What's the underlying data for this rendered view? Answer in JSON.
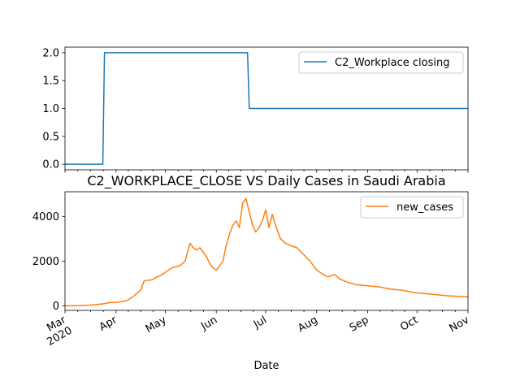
{
  "chart_data": [
    {
      "type": "line",
      "title": "",
      "xlabel": "",
      "ylabel": "",
      "ylim": [
        -0.1,
        2.1
      ],
      "yticks": [
        0.0,
        0.5,
        1.0,
        1.5,
        2.0
      ],
      "ytick_labels": [
        "0.0",
        "0.5",
        "1.0",
        "1.5",
        "2.0"
      ],
      "grid": false,
      "legend_position": "upper right",
      "series": [
        {
          "name": "C2_Workplace closing",
          "color": "#1f77b4",
          "x": [
            "2020-03-01",
            "2020-03-24",
            "2020-03-25",
            "2020-06-20",
            "2020-06-21",
            "2020-11-01"
          ],
          "y": [
            0,
            0,
            2,
            2,
            1,
            1
          ]
        }
      ]
    },
    {
      "type": "line",
      "title": "C2_WORKPLACE_CLOSE VS Daily Cases in Saudi Arabia",
      "xlabel": "Date",
      "ylabel": "",
      "ylim": [
        -200,
        5100
      ],
      "yticks": [
        0,
        2000,
        4000
      ],
      "ytick_labels": [
        "0",
        "2000",
        "4000"
      ],
      "grid": false,
      "legend_position": "upper right",
      "xlim": [
        "2020-03-01",
        "2020-11-01"
      ],
      "xtick_dates": [
        "2020-03-01",
        "2020-04-01",
        "2020-05-01",
        "2020-06-01",
        "2020-07-01",
        "2020-08-01",
        "2020-09-01",
        "2020-10-01",
        "2020-11-01"
      ],
      "xtick_labels": [
        "Mar\n2020",
        "Apr",
        "May",
        "Jun",
        "Jul",
        "Aug",
        "Sep",
        "Oct",
        "Nov"
      ],
      "series": [
        {
          "name": "new_cases",
          "color": "#ff7f0e",
          "x": [
            "2020-03-01",
            "2020-03-10",
            "2020-03-15",
            "2020-03-20",
            "2020-03-25",
            "2020-03-28",
            "2020-04-01",
            "2020-04-05",
            "2020-04-08",
            "2020-04-12",
            "2020-04-16",
            "2020-04-18",
            "2020-04-20",
            "2020-04-22",
            "2020-04-24",
            "2020-04-26",
            "2020-04-28",
            "2020-05-01",
            "2020-05-05",
            "2020-05-10",
            "2020-05-13",
            "2020-05-16",
            "2020-05-18",
            "2020-05-20",
            "2020-05-22",
            "2020-05-24",
            "2020-05-26",
            "2020-05-28",
            "2020-05-30",
            "2020-06-01",
            "2020-06-03",
            "2020-06-05",
            "2020-06-07",
            "2020-06-09",
            "2020-06-11",
            "2020-06-13",
            "2020-06-15",
            "2020-06-17",
            "2020-06-19",
            "2020-06-21",
            "2020-06-23",
            "2020-06-25",
            "2020-06-27",
            "2020-06-29",
            "2020-07-01",
            "2020-07-03",
            "2020-07-05",
            "2020-07-07",
            "2020-07-10",
            "2020-07-13",
            "2020-07-16",
            "2020-07-20",
            "2020-07-24",
            "2020-07-28",
            "2020-08-01",
            "2020-08-05",
            "2020-08-08",
            "2020-08-12",
            "2020-08-15",
            "2020-08-20",
            "2020-08-25",
            "2020-09-01",
            "2020-09-08",
            "2020-09-15",
            "2020-09-22",
            "2020-09-29",
            "2020-10-06",
            "2020-10-13",
            "2020-10-20",
            "2020-10-27",
            "2020-11-01"
          ],
          "y": [
            0,
            15,
            30,
            60,
            100,
            150,
            150,
            200,
            250,
            450,
            700,
            1100,
            1150,
            1150,
            1200,
            1300,
            1350,
            1500,
            1700,
            1800,
            2000,
            2800,
            2600,
            2500,
            2600,
            2400,
            2200,
            1900,
            1700,
            1600,
            1800,
            2000,
            2700,
            3200,
            3600,
            3800,
            3500,
            4600,
            4800,
            4200,
            3600,
            3300,
            3500,
            3800,
            4300,
            3500,
            4100,
            3600,
            3000,
            2800,
            2700,
            2600,
            2300,
            2000,
            1600,
            1400,
            1300,
            1400,
            1200,
            1050,
            950,
            900,
            850,
            750,
            700,
            600,
            550,
            500,
            450,
            420,
            400
          ]
        }
      ]
    }
  ]
}
